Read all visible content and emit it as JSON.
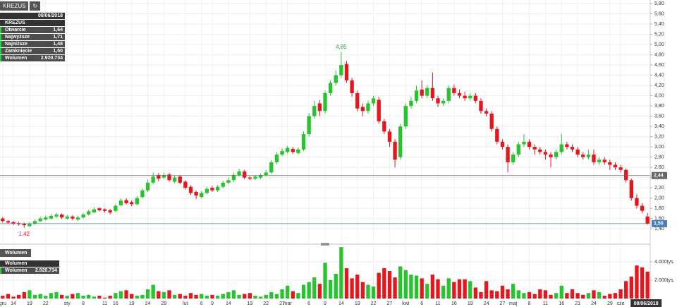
{
  "chart_data": {
    "type": "candlestick",
    "categories": [
      "gru",
      null,
      "14",
      null,
      null,
      "19",
      null,
      null,
      "22",
      null,
      null,
      null,
      "sty",
      null,
      null,
      "8",
      null,
      null,
      null,
      "11",
      null,
      "16",
      null,
      null,
      "19",
      null,
      null,
      "24",
      null,
      null,
      "29",
      null,
      null,
      null,
      "lut",
      null,
      null,
      "6",
      null,
      "9",
      null,
      null,
      "14",
      null,
      null,
      null,
      "19",
      null,
      null,
      "22",
      null,
      null,
      "27",
      "mar",
      null,
      null,
      null,
      "6",
      null,
      null,
      "9",
      null,
      null,
      "14",
      null,
      null,
      "19",
      null,
      null,
      "22",
      null,
      null,
      "27",
      null,
      null,
      "kwi",
      null,
      null,
      "6",
      null,
      null,
      "11",
      null,
      null,
      "16",
      null,
      null,
      "19",
      null,
      null,
      "24",
      null,
      null,
      "27",
      null,
      "maj",
      null,
      null,
      "8",
      null,
      null,
      "11",
      null,
      null,
      "16",
      null,
      null,
      "21",
      null,
      null,
      "24",
      null,
      null,
      "29",
      null,
      "cze",
      null,
      null,
      null,
      null,
      "08/06/2018"
    ],
    "open": [
      1.6,
      1.55,
      1.53,
      1.51,
      1.5,
      1.45,
      1.5,
      1.55,
      1.58,
      1.6,
      1.64,
      1.68,
      1.6,
      1.64,
      1.58,
      1.62,
      1.68,
      1.72,
      1.8,
      1.78,
      1.76,
      1.75,
      1.86,
      1.96,
      1.92,
      1.88,
      2.02,
      2.15,
      2.3,
      2.45,
      2.4,
      2.46,
      2.32,
      2.42,
      2.32,
      2.22,
      2.12,
      2.02,
      2.1,
      2.2,
      2.15,
      2.22,
      2.3,
      2.35,
      2.45,
      2.52,
      2.4,
      2.38,
      2.4,
      2.45,
      2.5,
      2.7,
      2.85,
      2.9,
      2.96,
      2.88,
      2.95,
      3.25,
      3.6,
      3.85,
      3.7,
      4.05,
      4.25,
      4.4,
      4.62,
      4.3,
      4.05,
      3.78,
      3.7,
      3.85,
      3.92,
      3.5,
      3.3,
      3.1,
      2.8,
      3.4,
      3.8,
      3.9,
      4.12,
      4.0,
      4.15,
      3.95,
      3.85,
      3.9,
      4.15,
      4.05,
      4.0,
      3.95,
      4.0,
      3.9,
      3.7,
      3.65,
      3.35,
      3.1,
      3.0,
      2.7,
      2.85,
      3.05,
      3.1,
      3.0,
      2.95,
      2.9,
      2.85,
      2.8,
      2.9,
      3.05,
      3.0,
      2.95,
      2.85,
      2.8,
      2.85,
      2.7,
      2.75,
      2.7,
      2.65,
      2.6,
      2.55,
      2.35,
      2.0,
      1.85,
      1.64
    ],
    "high": [
      1.63,
      1.57,
      1.55,
      1.54,
      1.52,
      1.53,
      1.58,
      1.63,
      1.66,
      1.69,
      1.71,
      1.7,
      1.67,
      1.66,
      1.65,
      1.71,
      1.77,
      1.82,
      1.82,
      1.8,
      1.79,
      1.88,
      1.99,
      2.0,
      1.95,
      2.04,
      2.19,
      2.36,
      2.5,
      2.49,
      2.5,
      2.49,
      2.44,
      2.45,
      2.35,
      2.25,
      2.15,
      2.14,
      2.22,
      2.24,
      2.25,
      2.34,
      2.4,
      2.5,
      2.57,
      2.55,
      2.43,
      2.45,
      2.48,
      2.55,
      2.74,
      2.9,
      2.97,
      3.02,
      3.0,
      2.99,
      3.3,
      3.66,
      3.9,
      3.92,
      4.1,
      4.3,
      4.5,
      4.85,
      4.68,
      4.35,
      4.1,
      3.85,
      3.9,
      4.0,
      3.98,
      3.55,
      3.35,
      3.15,
      3.45,
      3.85,
      3.98,
      4.2,
      4.3,
      4.2,
      4.45,
      4.0,
      3.95,
      4.2,
      4.22,
      4.12,
      4.08,
      4.05,
      4.05,
      3.95,
      3.75,
      3.7,
      3.4,
      3.15,
      3.05,
      2.9,
      3.1,
      3.25,
      3.15,
      3.05,
      3.0,
      2.95,
      2.9,
      2.95,
      3.25,
      3.1,
      3.05,
      3.0,
      2.9,
      2.95,
      2.95,
      2.8,
      2.8,
      2.75,
      2.7,
      2.65,
      2.58,
      2.38,
      2.08,
      1.9,
      1.71
    ],
    "low": [
      1.52,
      1.49,
      1.47,
      1.46,
      1.42,
      1.44,
      1.48,
      1.53,
      1.56,
      1.58,
      1.61,
      1.59,
      1.58,
      1.56,
      1.55,
      1.6,
      1.66,
      1.7,
      1.74,
      1.72,
      1.68,
      1.73,
      1.84,
      1.87,
      1.84,
      1.86,
      1.99,
      2.12,
      2.27,
      2.33,
      2.37,
      2.32,
      2.29,
      2.27,
      2.17,
      2.06,
      1.98,
      1.99,
      2.07,
      2.12,
      2.12,
      2.19,
      2.27,
      2.32,
      2.42,
      2.37,
      2.35,
      2.35,
      2.37,
      2.42,
      2.47,
      2.66,
      2.82,
      2.87,
      2.86,
      2.85,
      2.92,
      3.2,
      3.55,
      3.6,
      3.65,
      4.0,
      4.2,
      4.35,
      4.25,
      3.98,
      3.7,
      3.6,
      3.65,
      3.8,
      3.45,
      3.25,
      3.0,
      2.6,
      2.75,
      3.35,
      3.75,
      3.85,
      3.95,
      3.95,
      3.9,
      3.78,
      3.8,
      3.85,
      4.0,
      3.95,
      3.9,
      3.9,
      3.85,
      3.65,
      3.6,
      3.3,
      3.05,
      2.95,
      2.5,
      2.65,
      2.8,
      3.0,
      2.95,
      2.85,
      2.85,
      2.75,
      2.6,
      2.75,
      2.85,
      2.95,
      2.9,
      2.8,
      2.75,
      2.75,
      2.65,
      2.65,
      2.65,
      2.55,
      2.55,
      2.5,
      2.3,
      1.95,
      1.8,
      1.7,
      1.48
    ],
    "close": [
      1.55,
      1.52,
      1.5,
      1.49,
      1.47,
      1.5,
      1.55,
      1.6,
      1.62,
      1.65,
      1.68,
      1.62,
      1.64,
      1.6,
      1.62,
      1.68,
      1.74,
      1.78,
      1.76,
      1.75,
      1.72,
      1.85,
      1.95,
      1.9,
      1.88,
      2.0,
      2.15,
      2.3,
      2.42,
      2.38,
      2.45,
      2.35,
      2.4,
      2.3,
      2.2,
      2.1,
      2.05,
      2.1,
      2.18,
      2.15,
      2.22,
      2.3,
      2.35,
      2.45,
      2.52,
      2.4,
      2.38,
      2.42,
      2.45,
      2.5,
      2.7,
      2.85,
      2.92,
      2.98,
      2.9,
      2.95,
      3.25,
      3.6,
      3.8,
      3.7,
      4.05,
      4.25,
      4.4,
      4.6,
      4.3,
      4.05,
      3.75,
      3.7,
      3.85,
      3.95,
      3.5,
      3.3,
      3.1,
      2.75,
      3.4,
      3.8,
      3.9,
      4.1,
      4.0,
      4.15,
      3.95,
      3.85,
      3.9,
      4.15,
      4.05,
      4.0,
      3.95,
      4.0,
      3.9,
      3.7,
      3.65,
      3.35,
      3.1,
      3.0,
      2.7,
      2.85,
      3.05,
      3.1,
      3.0,
      2.95,
      2.9,
      2.85,
      2.8,
      2.9,
      3.05,
      3.0,
      2.95,
      2.85,
      2.8,
      2.85,
      2.7,
      2.75,
      2.7,
      2.65,
      2.6,
      2.55,
      2.35,
      2.0,
      1.85,
      1.75,
      1.5
    ],
    "volume": [
      300,
      500,
      200,
      400,
      700,
      900,
      400,
      500,
      300,
      600,
      700,
      400,
      300,
      500,
      600,
      300,
      400,
      200,
      300,
      100,
      300,
      600,
      800,
      900,
      500,
      300,
      400,
      1000,
      1500,
      800,
      700,
      900,
      400,
      500,
      300,
      600,
      400,
      500,
      300,
      400,
      300,
      500,
      700,
      900,
      400,
      500,
      600,
      300,
      200,
      400,
      700,
      500,
      1000,
      1400,
      800,
      600,
      1500,
      1800,
      2300,
      1600,
      3900,
      2000,
      2700,
      5600,
      3300,
      2200,
      2600,
      1800,
      1500,
      1300,
      2800,
      3300,
      3000,
      2300,
      3500,
      3100,
      2600,
      2500,
      2200,
      1600,
      2600,
      2100,
      1400,
      2200,
      1800,
      2100,
      2100,
      1900,
      1200,
      700,
      1900,
      900,
      800,
      1400,
      1000,
      1600,
      900,
      600,
      700,
      500,
      1000,
      900,
      400,
      600,
      1400,
      600,
      1000,
      600,
      400,
      600,
      900,
      700,
      300,
      500,
      600,
      1000,
      1900,
      2400,
      3600,
      3400,
      2920.734
    ],
    "up_color": "#27c42f",
    "down_color": "#e5161d",
    "ylim": [
      1.14,
      5.87
    ],
    "yticks": [
      {
        "value": 1.4,
        "label": "1,40"
      },
      {
        "value": 1.6,
        "label": "1,60"
      },
      {
        "value": 1.8,
        "label": "1,80"
      },
      {
        "value": 2.0,
        "label": "2,00"
      },
      {
        "value": 2.2,
        "label": "2,20"
      },
      {
        "value": 2.4,
        "label": "2,40"
      },
      {
        "value": 2.6,
        "label": "2,60"
      },
      {
        "value": 2.8,
        "label": "2,80"
      },
      {
        "value": 3.0,
        "label": "3,00"
      },
      {
        "value": 3.2,
        "label": "3,20"
      },
      {
        "value": 3.4,
        "label": "3,40"
      },
      {
        "value": 3.6,
        "label": "3,60"
      },
      {
        "value": 3.8,
        "label": "3,80"
      },
      {
        "value": 4.0,
        "label": "4,00"
      },
      {
        "value": 4.2,
        "label": "4,20"
      },
      {
        "value": 4.4,
        "label": "4,40"
      },
      {
        "value": 4.6,
        "label": "4,60"
      },
      {
        "value": 4.8,
        "label": "4,80"
      },
      {
        "value": 5.0,
        "label": "5,00"
      },
      {
        "value": 5.2,
        "label": "5,20"
      },
      {
        "value": 5.4,
        "label": "5,40"
      },
      {
        "value": 5.6,
        "label": "5,60"
      },
      {
        "value": 5.8,
        "label": "5,80"
      }
    ],
    "y2lim": [
      0,
      5690
    ],
    "y2ticks": [
      {
        "value": 2000,
        "label": "2.000tys."
      },
      {
        "value": 4000,
        "label": "4.000tys."
      }
    ],
    "grid": true,
    "high_label": "4,85",
    "low_label": "1,42",
    "price_lines": [
      {
        "value": 2.44,
        "label": "2,44",
        "color": "#666666"
      },
      {
        "value": 1.5,
        "label": "1,50",
        "color": "#4a7fb5"
      }
    ]
  },
  "info_panel": {
    "symbol": "KREZUS",
    "date": "08/06/2018",
    "name": "KREZUS",
    "rows": [
      [
        "Otwarcie",
        "1,64"
      ],
      [
        "Najwyższe",
        "1,71"
      ],
      [
        "Najniższe",
        "1,48"
      ],
      [
        "Zamknięcie",
        "1,50"
      ],
      [
        "Wolumen",
        "2.920.734"
      ]
    ]
  },
  "volume_panel": {
    "title": "Wolumen",
    "label": "Wolumen",
    "value": "2.920.734"
  }
}
